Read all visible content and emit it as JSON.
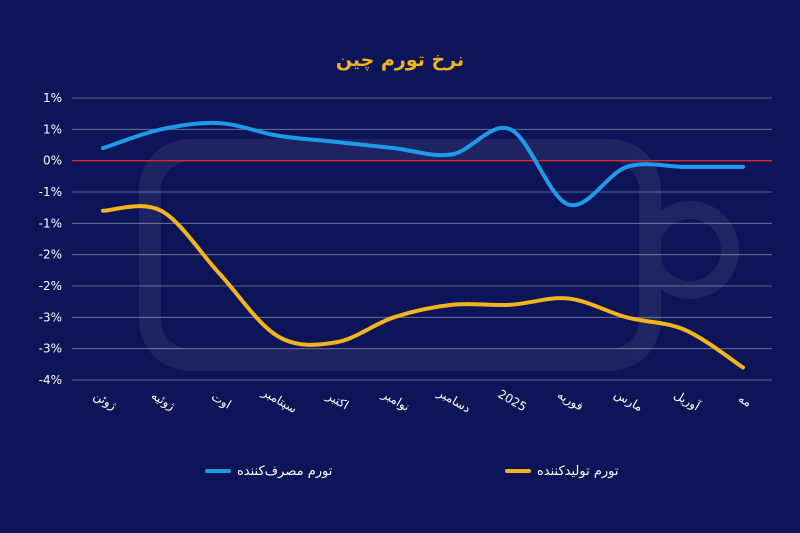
{
  "chart_data": {
    "type": "line",
    "title": "نرخ تورم چین",
    "categories": [
      "ژوئن",
      "ژوئیه",
      "اوت",
      "سپتامبر",
      "اکتبر",
      "نوامبر",
      "دسامبر",
      "2025",
      "فوریه",
      "مارس",
      "آوریل",
      "مه"
    ],
    "series": [
      {
        "name": "تورم مصرف‌کننده",
        "color": "#1e9be8",
        "values": [
          0.2,
          0.5,
          0.6,
          0.4,
          0.3,
          0.2,
          0.1,
          0.5,
          -0.7,
          -0.1,
          -0.1,
          -0.1
        ]
      },
      {
        "name": "تورم تولیدکننده",
        "color": "#f2b51c",
        "values": [
          -0.8,
          -0.8,
          -1.8,
          -2.8,
          -2.9,
          -2.5,
          -2.3,
          -2.3,
          -2.2,
          -2.5,
          -2.7,
          -3.3
        ]
      }
    ],
    "yticks": [
      {
        "v": 1.0,
        "label": "1%"
      },
      {
        "v": 0.5,
        "label": "1%"
      },
      {
        "v": 0.0,
        "label": "0%"
      },
      {
        "v": -0.5,
        "label": "-1%"
      },
      {
        "v": -1.0,
        "label": "-1%"
      },
      {
        "v": -1.5,
        "label": "-2%"
      },
      {
        "v": -2.0,
        "label": "-2%"
      },
      {
        "v": -2.5,
        "label": "-3%"
      },
      {
        "v": -3.0,
        "label": "-3%"
      },
      {
        "v": -3.5,
        "label": "-4%"
      }
    ],
    "ylim": [
      -3.5,
      1.0
    ],
    "zero_line_color": "#d42a2a",
    "grid": true,
    "legend_position": "bottom",
    "background_color": "#0d1457",
    "title_color": "#f2b51c"
  }
}
